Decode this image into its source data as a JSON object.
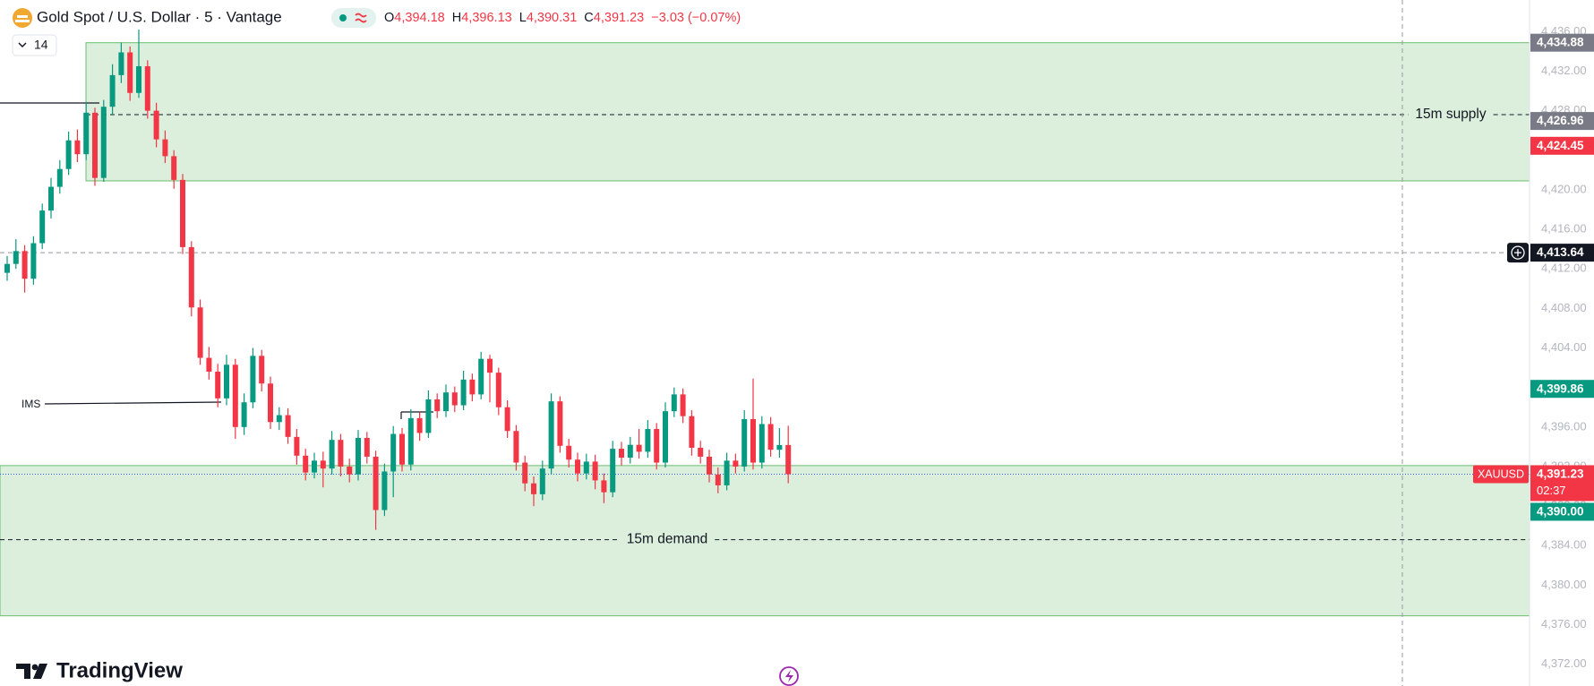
{
  "header": {
    "symbol": "Gold Spot / U.S. Dollar · 5 · Vantage",
    "ohlc": [
      {
        "key": "O",
        "value": "4,394.18"
      },
      {
        "key": "H",
        "value": "4,396.13"
      },
      {
        "key": "L",
        "value": "4,390.31"
      },
      {
        "key": "C",
        "value": "4,391.23"
      }
    ],
    "change": "−3.03 (−0.07%)",
    "indicator_count": "14"
  },
  "chart_data": {
    "type": "candlestick",
    "up_color": "#089981",
    "down_color": "#f23645",
    "ylim": [
      4369.8,
      4439.2
    ],
    "yticks": [
      {
        "value": 4436,
        "label": "4,436.00"
      },
      {
        "value": 4432,
        "label": "4,432.00"
      },
      {
        "value": 4428,
        "label": "4,428.00"
      },
      {
        "value": 4424,
        "label": "4,424.00"
      },
      {
        "value": 4420,
        "label": "4,420.00"
      },
      {
        "value": 4416,
        "label": "4,416.00"
      },
      {
        "value": 4412,
        "label": "4,412.00"
      },
      {
        "value": 4408,
        "label": "4,408.00"
      },
      {
        "value": 4404,
        "label": "4,404.00"
      },
      {
        "value": 4400,
        "label": "4,400.00"
      },
      {
        "value": 4396,
        "label": "4,396.00"
      },
      {
        "value": 4392,
        "label": "4,392.00"
      },
      {
        "value": 4388,
        "label": "4,388.00"
      },
      {
        "value": 4384,
        "label": "4,384.00"
      },
      {
        "value": 4380,
        "label": "4,380.00"
      },
      {
        "value": 4376,
        "label": "4,376.00"
      },
      {
        "value": 4372,
        "label": "4,372.00"
      }
    ],
    "grid": false,
    "zones": [
      {
        "label": "15m supply",
        "top": 4434.88,
        "bottom": 4420.9,
        "mid": 4427.6,
        "color": "#4caf50"
      },
      {
        "label": "15m demand",
        "top": 4392.1,
        "bottom": 4376.9,
        "mid": 4384.6,
        "color": "#4caf50"
      }
    ],
    "crosshair": {
      "value": 4413.64,
      "label": "4,413.64"
    },
    "price_labels": [
      {
        "value": 4434.88,
        "label": "4,434.88",
        "color": "#787b86"
      },
      {
        "value": 4426.96,
        "label": "4,426.96",
        "color": "#787b86"
      },
      {
        "value": 4424.45,
        "label": "4,424.45",
        "color": "#f23645"
      },
      {
        "value": 4399.86,
        "label": "4,399.86",
        "color": "#089981"
      },
      {
        "value": 4390.0,
        "label": "4,390.00",
        "color": "#089981"
      }
    ],
    "current": {
      "value": 4391.23,
      "label": "4,391.23",
      "countdown": "02:37",
      "symbol": "XAUUSD",
      "color": "#f23645",
      "line_color": "#2962ff"
    },
    "annotation": "IMS",
    "candles": [
      [
        4411.6,
        4413.3,
        4410.8,
        4412.5
      ],
      [
        4412.5,
        4415.0,
        4412.0,
        4413.8
      ],
      [
        4413.8,
        4414.4,
        4409.6,
        4411.0
      ],
      [
        4411.0,
        4415.3,
        4410.4,
        4414.6
      ],
      [
        4414.6,
        4418.6,
        4414.0,
        4417.9
      ],
      [
        4417.9,
        4421.2,
        4417.1,
        4420.3
      ],
      [
        4420.3,
        4423.0,
        4419.6,
        4422.1
      ],
      [
        4422.1,
        4425.9,
        4421.5,
        4425.0
      ],
      [
        4425.0,
        4426.1,
        4422.8,
        4423.6
      ],
      [
        4423.6,
        4428.9,
        4423.0,
        4427.8
      ],
      [
        4427.8,
        4428.3,
        4420.4,
        4421.2
      ],
      [
        4421.2,
        4429.1,
        4420.8,
        4428.4
      ],
      [
        4428.4,
        4432.7,
        4427.6,
        4431.6
      ],
      [
        4431.6,
        4434.9,
        4430.8,
        4433.9
      ],
      [
        4433.9,
        4434.5,
        4429.0,
        4429.8
      ],
      [
        4429.8,
        4436.2,
        4429.3,
        4432.5
      ],
      [
        4432.5,
        4433.1,
        4427.2,
        4428.0
      ],
      [
        4428.0,
        4428.8,
        4424.3,
        4425.1
      ],
      [
        4425.1,
        4426.0,
        4422.7,
        4423.4
      ],
      [
        4423.4,
        4424.0,
        4420.1,
        4421.0
      ],
      [
        4421.0,
        4421.6,
        4413.5,
        4414.2
      ],
      [
        4414.2,
        4414.8,
        4407.2,
        4408.1
      ],
      [
        4408.1,
        4408.9,
        4402.3,
        4403.0
      ],
      [
        4403.0,
        4404.1,
        4400.8,
        4401.6
      ],
      [
        4401.6,
        4402.4,
        4398.0,
        4398.9
      ],
      [
        4398.9,
        4403.3,
        4398.2,
        4402.3
      ],
      [
        4402.3,
        4402.9,
        4394.8,
        4396.0
      ],
      [
        4396.0,
        4399.4,
        4395.2,
        4398.5
      ],
      [
        4398.5,
        4404.0,
        4397.9,
        4403.2
      ],
      [
        4403.2,
        4403.8,
        4399.6,
        4400.4
      ],
      [
        4400.4,
        4401.1,
        4395.8,
        4396.5
      ],
      [
        4396.5,
        4398.0,
        4395.7,
        4397.2
      ],
      [
        4397.2,
        4397.9,
        4394.3,
        4395.0
      ],
      [
        4395.0,
        4395.8,
        4392.2,
        4393.1
      ],
      [
        4393.1,
        4393.8,
        4390.6,
        4391.4
      ],
      [
        4391.4,
        4393.4,
        4390.8,
        4392.6
      ],
      [
        4392.6,
        4393.5,
        4389.9,
        4391.8
      ],
      [
        4391.8,
        4395.6,
        4391.2,
        4394.7
      ],
      [
        4394.7,
        4395.3,
        4391.0,
        4392.0
      ],
      [
        4392.0,
        4392.8,
        4390.4,
        4391.2
      ],
      [
        4391.2,
        4395.7,
        4390.6,
        4394.9
      ],
      [
        4394.9,
        4395.5,
        4392.3,
        4393.0
      ],
      [
        4393.0,
        4393.6,
        4385.6,
        4387.6
      ],
      [
        4387.6,
        4392.3,
        4387.0,
        4391.5
      ],
      [
        4391.5,
        4396.1,
        4388.9,
        4395.3
      ],
      [
        4395.3,
        4395.9,
        4391.5,
        4392.2
      ],
      [
        4392.2,
        4397.8,
        4391.6,
        4396.9
      ],
      [
        4396.9,
        4397.5,
        4394.6,
        4395.4
      ],
      [
        4395.4,
        4399.7,
        4394.9,
        4398.8
      ],
      [
        4398.8,
        4399.4,
        4396.9,
        4397.6
      ],
      [
        4397.6,
        4400.3,
        4397.0,
        4399.5
      ],
      [
        4399.5,
        4400.1,
        4397.5,
        4398.2
      ],
      [
        4398.2,
        4401.7,
        4397.7,
        4400.8
      ],
      [
        4400.8,
        4401.4,
        4398.6,
        4399.3
      ],
      [
        4399.3,
        4403.6,
        4398.8,
        4402.9
      ],
      [
        4402.9,
        4403.3,
        4398.5,
        4401.5
      ],
      [
        4401.5,
        4402.0,
        4397.2,
        4398.0
      ],
      [
        4398.0,
        4398.7,
        4394.9,
        4395.6
      ],
      [
        4395.6,
        4396.2,
        4391.6,
        4392.4
      ],
      [
        4392.4,
        4393.1,
        4389.5,
        4390.3
      ],
      [
        4390.3,
        4391.0,
        4388.0,
        4389.2
      ],
      [
        4389.2,
        4392.6,
        4388.6,
        4391.8
      ],
      [
        4391.8,
        4399.4,
        4391.2,
        4398.6
      ],
      [
        4398.6,
        4399.1,
        4393.4,
        4394.1
      ],
      [
        4394.1,
        4394.8,
        4391.9,
        4392.7
      ],
      [
        4392.7,
        4393.4,
        4390.5,
        4391.3
      ],
      [
        4391.3,
        4393.3,
        4390.7,
        4392.5
      ],
      [
        4392.5,
        4393.2,
        4389.7,
        4390.6
      ],
      [
        4390.6,
        4391.3,
        4388.3,
        4389.4
      ],
      [
        4389.4,
        4394.6,
        4388.9,
        4393.8
      ],
      [
        4393.8,
        4394.5,
        4392.1,
        4392.9
      ],
      [
        4392.9,
        4395.0,
        4392.3,
        4394.2
      ],
      [
        4394.2,
        4395.8,
        4392.8,
        4393.5
      ],
      [
        4393.5,
        4396.7,
        4392.9,
        4395.8
      ],
      [
        4395.8,
        4396.4,
        4391.7,
        4392.4
      ],
      [
        4392.4,
        4398.5,
        4391.9,
        4397.6
      ],
      [
        4397.6,
        4400.0,
        4397.0,
        4399.3
      ],
      [
        4399.3,
        4399.9,
        4396.4,
        4397.1
      ],
      [
        4397.1,
        4397.7,
        4393.1,
        4393.9
      ],
      [
        4393.9,
        4394.6,
        4392.3,
        4393.0
      ],
      [
        4393.0,
        4393.7,
        4390.4,
        4391.2
      ],
      [
        4391.2,
        4391.9,
        4389.3,
        4390.1
      ],
      [
        4390.1,
        4393.4,
        4389.6,
        4392.6
      ],
      [
        4392.6,
        4393.3,
        4391.3,
        4392.0
      ],
      [
        4392.0,
        4397.7,
        4391.5,
        4396.8
      ],
      [
        4396.8,
        4400.9,
        4391.7,
        4392.4
      ],
      [
        4392.4,
        4397.1,
        4391.8,
        4396.3
      ],
      [
        4396.3,
        4397.0,
        4393.0,
        4393.7
      ],
      [
        4393.7,
        4395.9,
        4392.9,
        4394.18
      ],
      [
        4394.18,
        4396.13,
        4390.31,
        4391.23
      ]
    ]
  },
  "logo": "TradingView"
}
